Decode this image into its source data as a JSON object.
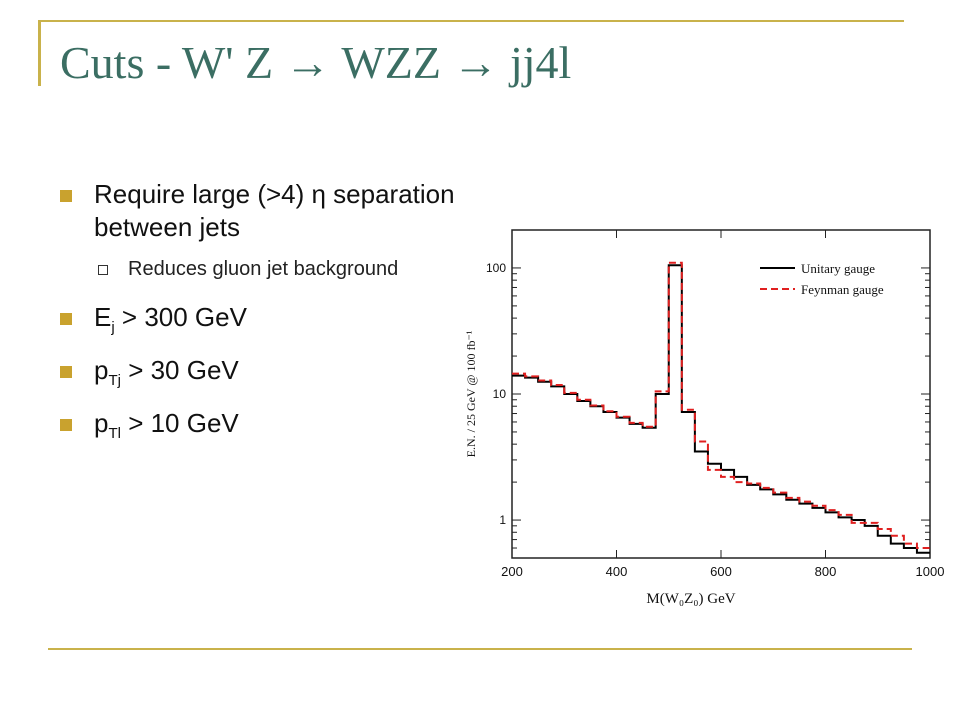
{
  "title": "Cuts - W' Z → WZZ → jj4l",
  "bullets": [
    {
      "text": "Require large (>4) η separation between jets"
    },
    {
      "sub_text": "Reduces gluon jet background"
    },
    {
      "main": "E",
      "sub": "j",
      "rest": " > 300 GeV"
    },
    {
      "main": "p",
      "sub": "Tj",
      "rest": " > 30 GeV"
    },
    {
      "main": "p",
      "sub": "Tl",
      "rest": " > 10 GeV"
    }
  ],
  "colors": {
    "title": "#3b6e63",
    "accent": "#c9b24b",
    "bullet": "#c9a22e",
    "unitary": "#000000",
    "feynman": "#e02020"
  },
  "chart_data": {
    "type": "line",
    "step": true,
    "xlabel": "M(W₀Z₀)  GeV",
    "ylabel": "E.N. / 25 GeV @ 100 fb⁻¹",
    "xlim": [
      200,
      1000
    ],
    "ylim": [
      0.5,
      200
    ],
    "yscale": "log",
    "x_ticks": [
      200,
      400,
      600,
      800,
      1000
    ],
    "y_ticks": [
      {
        "value": 1,
        "label": "1"
      },
      {
        "value": 10,
        "label": "10"
      },
      {
        "value": 100,
        "label": "100"
      }
    ],
    "legend_position": "top-right",
    "bin_edges": [
      200,
      225,
      250,
      275,
      300,
      325,
      350,
      375,
      400,
      425,
      450,
      475,
      500,
      525,
      550,
      575,
      600,
      625,
      650,
      675,
      700,
      725,
      750,
      775,
      800,
      825,
      850,
      875,
      900,
      925,
      950,
      975,
      1000
    ],
    "series": [
      {
        "name": "Unitary gauge",
        "color": "#000000",
        "dash": "solid",
        "values": [
          14,
          13.5,
          12.5,
          11.5,
          10,
          8.8,
          8,
          7.2,
          6.5,
          5.8,
          5.4,
          10,
          105,
          7.2,
          3.5,
          2.8,
          2.5,
          2.2,
          1.9,
          1.75,
          1.6,
          1.45,
          1.35,
          1.25,
          1.15,
          1.05,
          1.0,
          0.9,
          0.75,
          0.65,
          0.6,
          0.55
        ]
      },
      {
        "name": "Feynman gauge",
        "color": "#e02020",
        "dash": "dashed",
        "values": [
          14.5,
          13.8,
          12.8,
          11.8,
          10.2,
          9,
          8.1,
          7.3,
          6.6,
          5.9,
          5.5,
          10.5,
          110,
          7.5,
          4.2,
          2.5,
          2.2,
          2.0,
          1.95,
          1.8,
          1.65,
          1.5,
          1.4,
          1.3,
          1.2,
          1.1,
          0.95,
          0.95,
          0.85,
          0.75,
          0.65,
          0.6
        ]
      }
    ]
  }
}
